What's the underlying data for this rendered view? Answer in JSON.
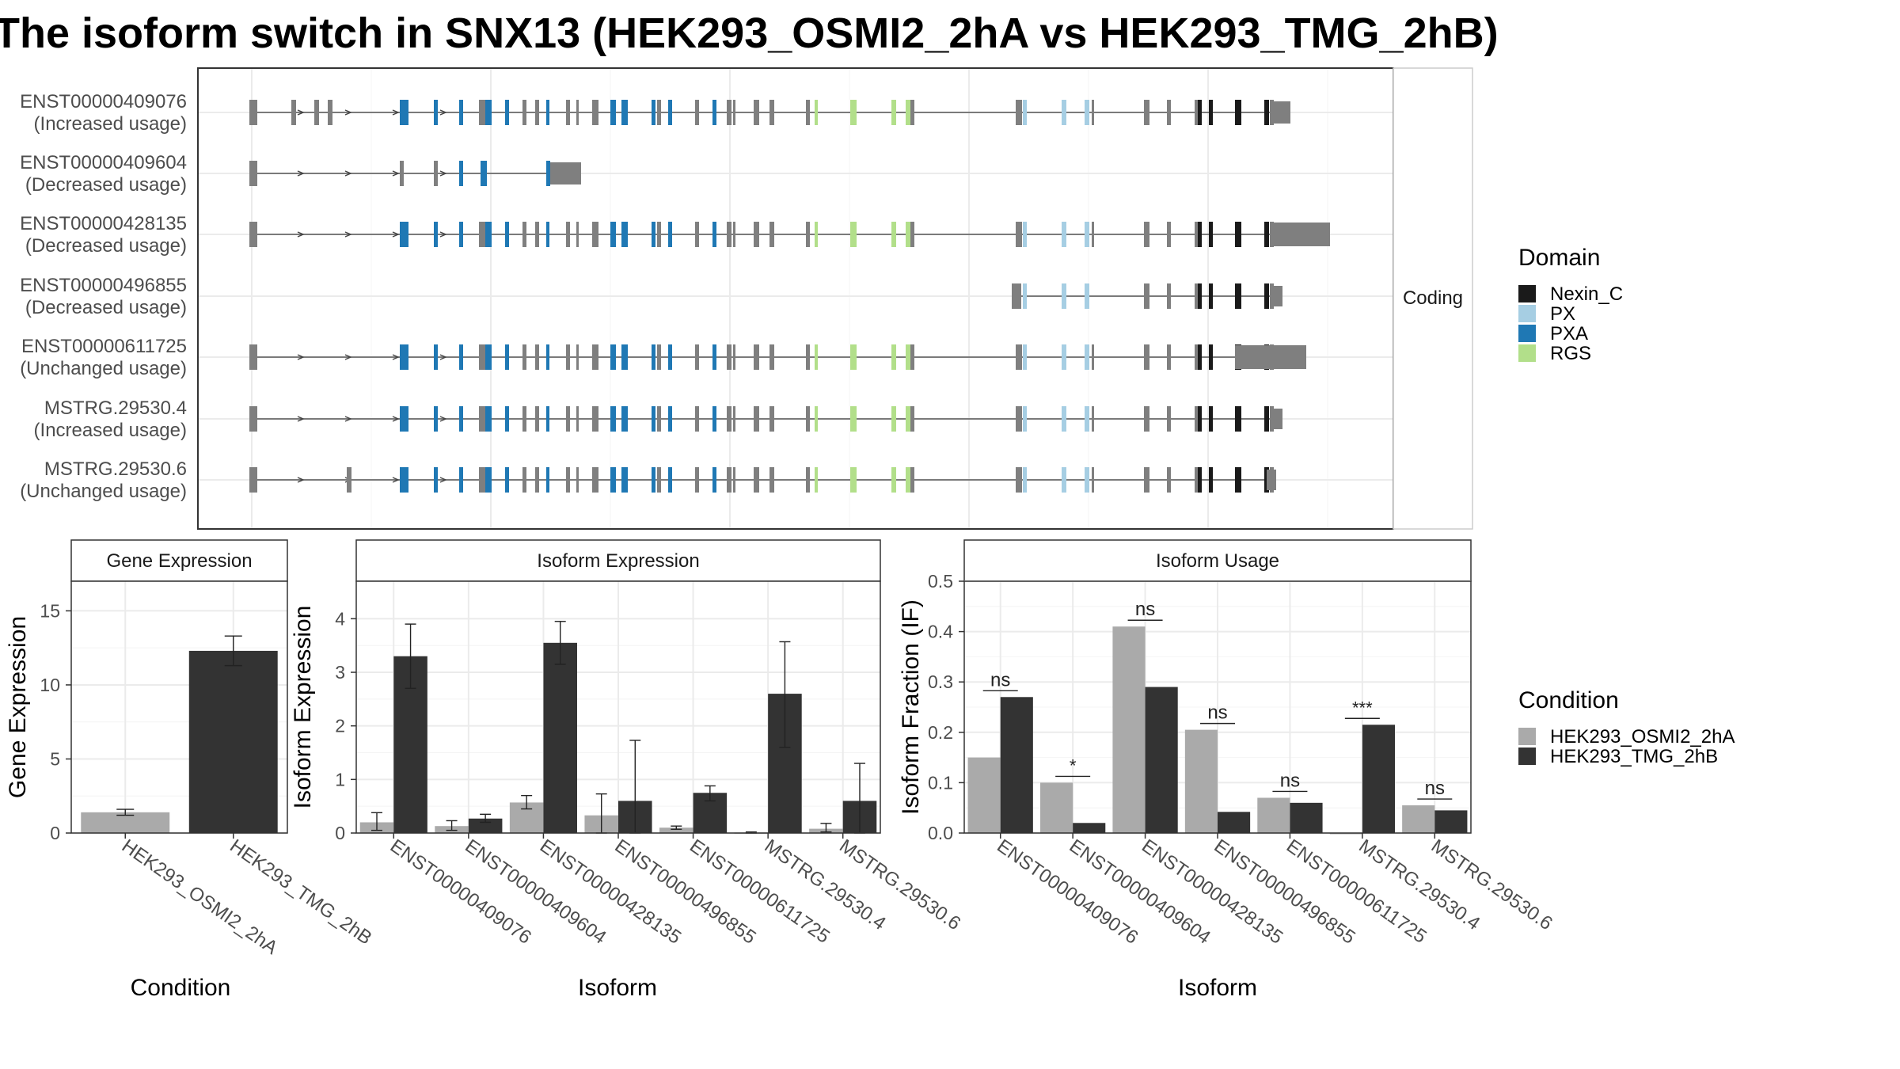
{
  "title": "The isoform switch in SNX13 (HEK293_OSMI2_2hA vs HEK293_TMG_2hB)",
  "structure": {
    "strip": "Coding",
    "transcripts": [
      {
        "id": "ENST00000409076",
        "usage": "(Increased usage)"
      },
      {
        "id": "ENST00000409604",
        "usage": "(Decreased usage)"
      },
      {
        "id": "ENST00000428135",
        "usage": "(Decreased usage)"
      },
      {
        "id": "ENST00000496855",
        "usage": "(Decreased usage)"
      },
      {
        "id": "ENST00000611725",
        "usage": "(Unchanged usage)"
      },
      {
        "id": "MSTRG.29530.4",
        "usage": "(Increased usage)"
      },
      {
        "id": "MSTRG.29530.6",
        "usage": "(Unchanged usage)"
      }
    ],
    "legend": {
      "title": "Domain",
      "items": [
        {
          "label": "Nexin_C",
          "color": "#1a1a1a"
        },
        {
          "label": "PX",
          "color": "#a6cee3"
        },
        {
          "label": "PXA",
          "color": "#1f78b4"
        },
        {
          "label": "RGS",
          "color": "#b2df8a"
        }
      ]
    }
  },
  "chart_data": [
    {
      "type": "bar",
      "title": "Gene Expression",
      "xlabel": "Condition",
      "ylabel": "Gene Expression",
      "ylim": [
        0,
        17
      ],
      "yticks": [
        0,
        5,
        10,
        15
      ],
      "categories": [
        "HEK293_OSMI2_2hA",
        "HEK293_TMG_2hB"
      ],
      "values": [
        1.4,
        12.3
      ],
      "errors": [
        [
          1.2,
          1.6
        ],
        [
          11.3,
          13.3
        ]
      ]
    },
    {
      "type": "bar",
      "title": "Isoform Expression",
      "xlabel": "Isoform",
      "ylabel": "Isoform Expression",
      "ylim": [
        0,
        4.7
      ],
      "yticks": [
        0,
        1,
        2,
        3,
        4
      ],
      "categories": [
        "ENST00000409076",
        "ENST00000409604",
        "ENST00000428135",
        "ENST00000496855",
        "ENST00000611725",
        "MSTRG.29530.4",
        "MSTRG.29530.6"
      ],
      "series": [
        {
          "name": "HEK293_OSMI2_2hA",
          "values": [
            0.2,
            0.13,
            0.57,
            0.33,
            0.1,
            0.01,
            0.08
          ],
          "errors": [
            [
              0.05,
              0.38
            ],
            [
              0.05,
              0.23
            ],
            [
              0.45,
              0.7
            ],
            [
              0.0,
              0.73
            ],
            [
              0.07,
              0.13
            ],
            [
              0.0,
              0.02
            ],
            [
              0.02,
              0.18
            ]
          ]
        },
        {
          "name": "HEK293_TMG_2hB",
          "values": [
            3.3,
            0.27,
            3.55,
            0.6,
            0.75,
            2.6,
            0.6
          ],
          "errors": [
            [
              2.7,
              3.9
            ],
            [
              0.2,
              0.35
            ],
            [
              3.15,
              3.95
            ],
            [
              0.0,
              1.73
            ],
            [
              0.6,
              0.88
            ],
            [
              1.6,
              3.57
            ],
            [
              0.0,
              1.3
            ]
          ]
        }
      ]
    },
    {
      "type": "bar",
      "title": "Isoform Usage",
      "xlabel": "Isoform",
      "ylabel": "Isoform Fraction (IF)",
      "ylim": [
        0,
        0.5
      ],
      "yticks": [
        0.0,
        0.1,
        0.2,
        0.3,
        0.4,
        0.5
      ],
      "categories": [
        "ENST00000409076",
        "ENST00000409604",
        "ENST00000428135",
        "ENST00000496855",
        "ENST00000611725",
        "MSTRG.29530.4",
        "MSTRG.29530.6"
      ],
      "series": [
        {
          "name": "HEK293_OSMI2_2hA",
          "values": [
            0.15,
            0.1,
            0.41,
            0.205,
            0.07,
            0.0,
            0.055
          ]
        },
        {
          "name": "HEK293_TMG_2hB",
          "values": [
            0.27,
            0.02,
            0.29,
            0.042,
            0.06,
            0.215,
            0.045
          ]
        }
      ],
      "significance": [
        "ns",
        "*",
        "ns",
        "ns",
        "ns",
        "***",
        "ns"
      ]
    }
  ],
  "condition_legend": {
    "title": "Condition",
    "items": [
      {
        "label": "HEK293_OSMI2_2hA",
        "color": "#aaaaaa"
      },
      {
        "label": "HEK293_TMG_2hB",
        "color": "#333333"
      }
    ]
  }
}
